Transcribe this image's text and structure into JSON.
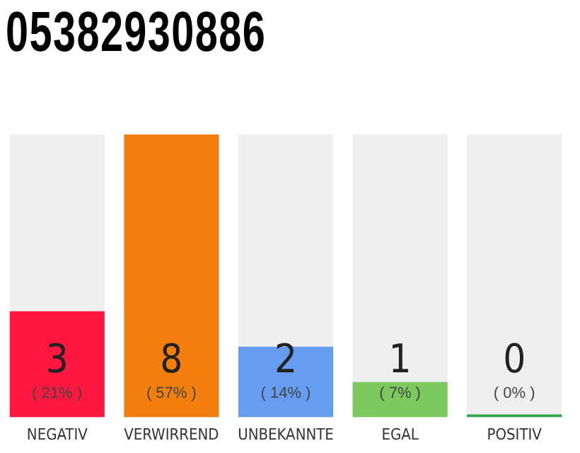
{
  "chart_data": {
    "type": "bar",
    "title": "05382930886",
    "categories": [
      "NEGATIV",
      "VERWIRREND",
      "UNBEKANNTE",
      "EGAL",
      "POSITIV"
    ],
    "values": [
      3,
      8,
      2,
      1,
      0
    ],
    "colors": [
      "#ff173d",
      "#f27e0c",
      "#659df0",
      "#7cc95d",
      "#2ea84a"
    ],
    "value_labels": [
      "3\n( 21% )",
      "8\n( 57% )",
      "2\n( 14% )",
      "1\n( 7% )",
      "0\n( 0% )"
    ],
    "grid": false,
    "legend": false
  }
}
